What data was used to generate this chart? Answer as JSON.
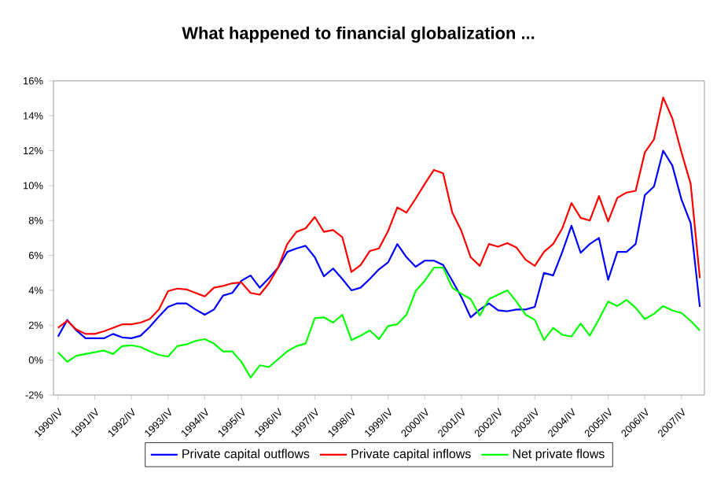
{
  "chart_data": {
    "type": "line",
    "title": "What happened to financial globalization ...",
    "categories": [
      "1990/IV",
      null,
      null,
      null,
      "1991/IV",
      null,
      null,
      null,
      "1992/IV",
      null,
      null,
      null,
      "1993/IV",
      null,
      null,
      null,
      "1994/IV",
      null,
      null,
      null,
      "1995/IV",
      null,
      null,
      null,
      "1996/IV",
      null,
      null,
      null,
      "1997/IV",
      null,
      null,
      null,
      "1998/IV",
      null,
      null,
      null,
      "1999/IV",
      null,
      null,
      null,
      "2000/IV",
      null,
      null,
      null,
      "2001/IV",
      null,
      null,
      null,
      "2002/IV",
      null,
      null,
      null,
      "2003/IV",
      null,
      null,
      null,
      "2004/IV",
      null,
      null,
      null,
      "2005/IV",
      null,
      null,
      null,
      "2006/IV",
      null,
      null,
      null,
      "2007/IV",
      null,
      null
    ],
    "series": [
      {
        "name": "Private capital outflows",
        "color": "#0000ff",
        "values": [
          1.35,
          2.3,
          1.7,
          1.25,
          1.25,
          1.25,
          1.5,
          1.3,
          1.25,
          1.4,
          1.9,
          2.5,
          3.05,
          3.25,
          3.25,
          2.9,
          2.6,
          2.9,
          3.7,
          3.85,
          4.55,
          4.85,
          4.15,
          4.7,
          5.3,
          6.2,
          6.4,
          6.55,
          5.9,
          4.8,
          5.25,
          4.65,
          4.0,
          4.15,
          4.65,
          5.2,
          5.6,
          6.65,
          5.9,
          5.35,
          5.7,
          5.7,
          5.45,
          4.55,
          3.6,
          2.45,
          2.9,
          3.25,
          2.85,
          2.8,
          2.9,
          2.9,
          3.05,
          5.0,
          4.85,
          6.2,
          7.7,
          6.15,
          6.65,
          7.0,
          4.6,
          6.2,
          6.2,
          6.65,
          9.45,
          9.95,
          12.0,
          11.15,
          9.2,
          7.85,
          3.05
        ]
      },
      {
        "name": "Private capital inflows",
        "color": "#ff0000",
        "values": [
          1.85,
          2.25,
          1.75,
          1.5,
          1.5,
          1.65,
          1.85,
          2.05,
          2.05,
          2.15,
          2.35,
          2.9,
          3.95,
          4.1,
          4.05,
          3.85,
          3.65,
          4.15,
          4.25,
          4.4,
          4.45,
          3.85,
          3.75,
          4.4,
          5.3,
          6.65,
          7.35,
          7.55,
          8.2,
          7.35,
          7.45,
          7.05,
          5.05,
          5.45,
          6.25,
          6.4,
          7.4,
          8.75,
          8.45,
          9.25,
          10.1,
          10.9,
          10.7,
          8.45,
          7.4,
          5.9,
          5.4,
          6.65,
          6.5,
          6.7,
          6.45,
          5.75,
          5.4,
          6.2,
          6.65,
          7.55,
          9.0,
          8.15,
          8.0,
          9.4,
          7.95,
          9.3,
          9.6,
          9.7,
          11.9,
          12.65,
          15.05,
          13.85,
          11.9,
          10.1,
          4.7
        ]
      },
      {
        "name": "Net private flows",
        "color": "#00ff00",
        "values": [
          0.45,
          -0.1,
          0.25,
          0.35,
          0.45,
          0.55,
          0.35,
          0.8,
          0.85,
          0.75,
          0.5,
          0.3,
          0.2,
          0.8,
          0.9,
          1.1,
          1.2,
          0.95,
          0.5,
          0.5,
          -0.1,
          -1.0,
          -0.3,
          -0.4,
          0.05,
          0.5,
          0.8,
          0.95,
          2.4,
          2.45,
          2.15,
          2.6,
          1.15,
          1.4,
          1.7,
          1.2,
          1.95,
          2.05,
          2.6,
          3.95,
          4.55,
          5.3,
          5.3,
          4.15,
          3.8,
          3.5,
          2.55,
          3.5,
          3.75,
          4.0,
          3.35,
          2.6,
          2.3,
          1.15,
          1.85,
          1.45,
          1.35,
          2.1,
          1.4,
          2.35,
          3.35,
          3.1,
          3.45,
          3.0,
          2.35,
          2.65,
          3.1,
          2.85,
          2.7,
          2.25,
          1.7
        ]
      }
    ],
    "ylim": [
      -2,
      16
    ],
    "yticks": [
      {
        "value": -2,
        "label": "-2%"
      },
      {
        "value": 0,
        "label": "0%"
      },
      {
        "value": 2,
        "label": "2%"
      },
      {
        "value": 4,
        "label": "4%"
      },
      {
        "value": 6,
        "label": "6%"
      },
      {
        "value": 8,
        "label": "8%"
      },
      {
        "value": 10,
        "label": "10%"
      },
      {
        "value": 12,
        "label": "12%"
      },
      {
        "value": 14,
        "label": "14%"
      },
      {
        "value": 16,
        "label": "16%"
      }
    ],
    "grid": false,
    "legend": "bottom",
    "line_style": "solid"
  }
}
